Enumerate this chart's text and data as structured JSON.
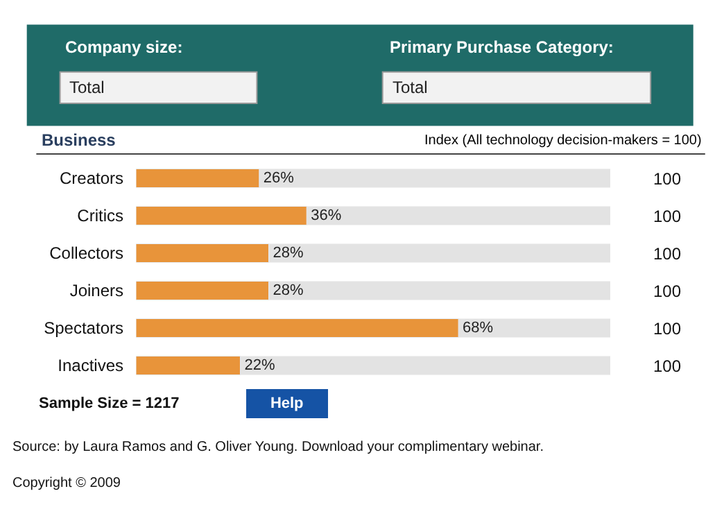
{
  "chart_data": {
    "type": "bar",
    "orientation": "horizontal",
    "categories": [
      "Creators",
      "Critics",
      "Collectors",
      "Joiners",
      "Spectators",
      "Inactives"
    ],
    "values": [
      26,
      36,
      28,
      28,
      68,
      22
    ],
    "value_labels": [
      "26%",
      "36%",
      "28%",
      "28%",
      "68%",
      "22%"
    ],
    "color": "#e8943a",
    "xlim": [
      0,
      100
    ],
    "ylabel": "Business",
    "tick_labels": "y",
    "annotations": [
      "100",
      "100",
      "100",
      "100",
      "100",
      "100",
      "Index (All technology decision-makers = 100)",
      "Company size:",
      "Total",
      "Primary Purchase Category:",
      "Total",
      "Sample Size = 1217",
      "Help",
      "Source: by Laura Ramos and G. Oliver Young. Download your complimentary webinar.",
      "Copyright © 2009"
    ]
  }
}
